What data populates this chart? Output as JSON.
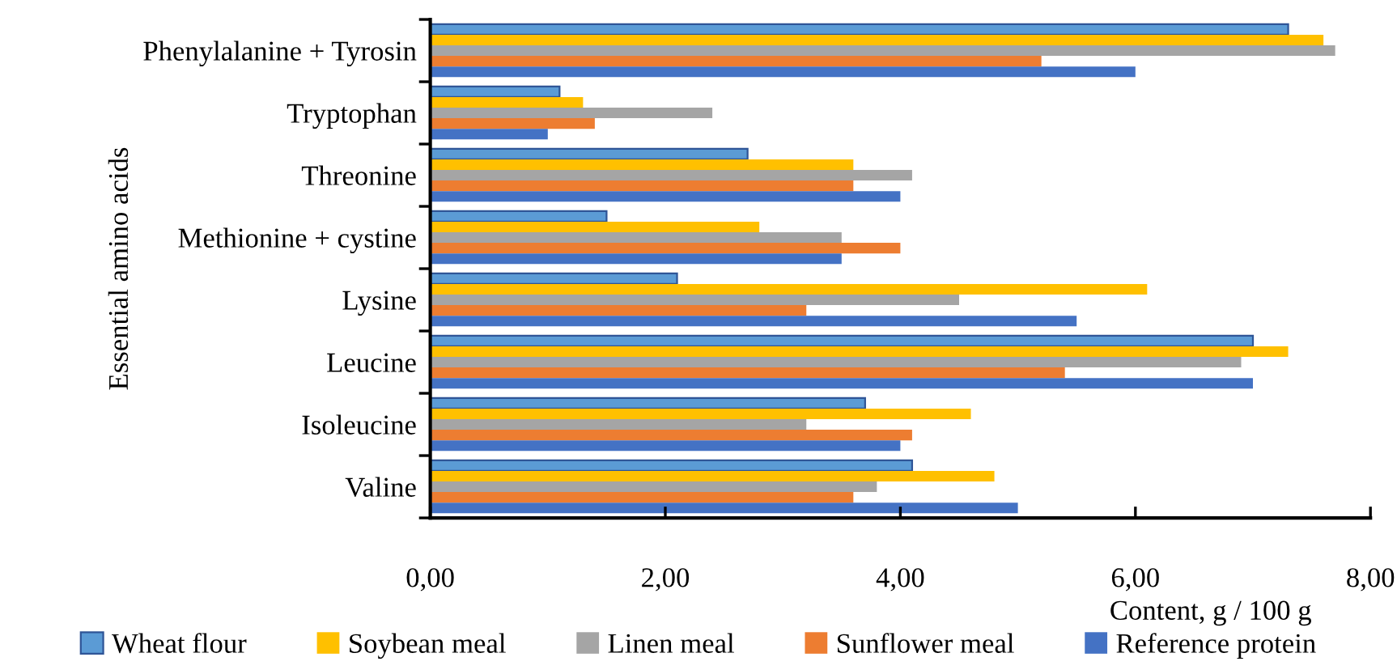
{
  "chart_data": {
    "type": "bar",
    "orientation": "horizontal",
    "categories": [
      "Phenylalanine + Tyrosin",
      "Tryptophan",
      "Threonine",
      "Methionine + cystine",
      "Lysine",
      "Leucine",
      "Isoleucine",
      "Valine"
    ],
    "series": [
      {
        "name": "Wheat flour",
        "color": "#5b9bd5",
        "values": [
          7.3,
          1.1,
          2.7,
          1.5,
          2.1,
          7.0,
          3.7,
          4.1
        ]
      },
      {
        "name": "Soybean meal",
        "color": "#ffc000",
        "values": [
          7.6,
          1.3,
          3.6,
          2.8,
          6.1,
          7.3,
          4.6,
          4.8
        ]
      },
      {
        "name": "Linen meal",
        "color": "#a5a5a5",
        "values": [
          7.7,
          2.4,
          4.1,
          3.5,
          4.5,
          6.9,
          3.2,
          3.8
        ]
      },
      {
        "name": "Sunflower meal",
        "color": "#ed7d31",
        "values": [
          5.2,
          1.4,
          3.6,
          4.0,
          3.2,
          5.4,
          4.1,
          3.6
        ]
      },
      {
        "name": "Reference protein",
        "color": "#4472c4",
        "values": [
          6.0,
          1.0,
          4.0,
          3.5,
          5.5,
          7.0,
          4.0,
          5.0
        ]
      }
    ],
    "xlabel": "Content, g / 100 g",
    "ylabel": "Essential amino acids",
    "xlim": [
      0,
      8
    ],
    "xticks": [
      {
        "value": 0,
        "label": "0,00"
      },
      {
        "value": 2,
        "label": "2,00"
      },
      {
        "value": 4,
        "label": "4,00"
      },
      {
        "value": 6,
        "label": "6,00"
      },
      {
        "value": 8,
        "label": "8,00"
      }
    ],
    "grid": false,
    "legend": "bottom"
  }
}
